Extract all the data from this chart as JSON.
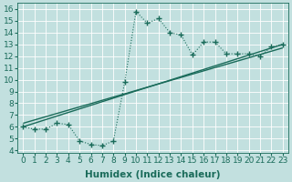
{
  "xlabel": "Humidex (Indice chaleur)",
  "ylabel": "",
  "bg_color": "#c2e0df",
  "grid_color": "#ffffff",
  "line_color": "#1a6b5a",
  "xlim": [
    -0.5,
    23.5
  ],
  "ylim": [
    3.8,
    16.5
  ],
  "xticks": [
    0,
    1,
    2,
    3,
    4,
    5,
    6,
    7,
    8,
    9,
    10,
    11,
    12,
    13,
    14,
    15,
    16,
    17,
    18,
    19,
    20,
    21,
    22,
    23
  ],
  "yticks": [
    4,
    5,
    6,
    7,
    8,
    9,
    10,
    11,
    12,
    13,
    14,
    15,
    16
  ],
  "curve_x": [
    0,
    1,
    2,
    3,
    4,
    5,
    6,
    7,
    8,
    9,
    10,
    11,
    12,
    13,
    14,
    15,
    16,
    17,
    18,
    19,
    20,
    21,
    22,
    23
  ],
  "curve_y": [
    6.0,
    5.8,
    5.8,
    6.3,
    6.2,
    4.8,
    4.5,
    4.4,
    4.8,
    9.8,
    15.8,
    14.8,
    15.2,
    14.0,
    13.8,
    12.1,
    13.2,
    13.2,
    12.2,
    12.2,
    12.2,
    12.0,
    12.8,
    13.0
  ],
  "line1_x": [
    0,
    23
  ],
  "line1_y": [
    6.0,
    13.0
  ],
  "line2_x": [
    0,
    23
  ],
  "line2_y": [
    6.3,
    12.7
  ],
  "tick_fontsize": 6.5,
  "xlabel_fontsize": 7.5
}
